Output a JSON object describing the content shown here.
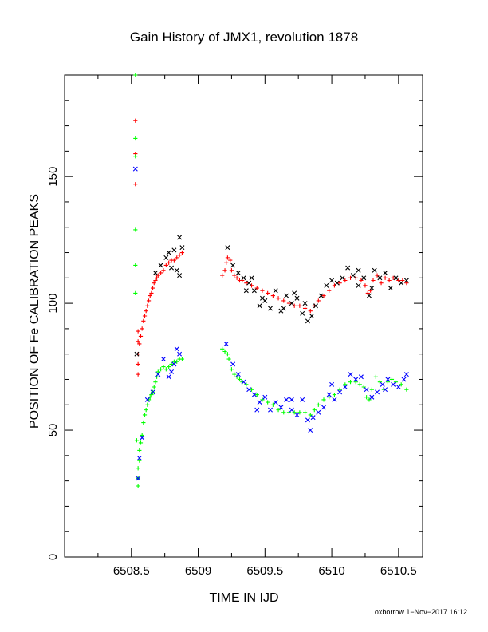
{
  "chart_data": {
    "type": "scatter",
    "title": "Gain History of JMX1, revolution 1878",
    "xlabel": "TIME IN IJD",
    "ylabel": "POSITION OF Fe CALIBRATION PEAKS",
    "xlim": [
      6508.0,
      6510.68
    ],
    "ylim": [
      0,
      190
    ],
    "x_ticks": [
      6508.5,
      6509,
      6509.5,
      6510,
      6510.5
    ],
    "x_tick_labels": [
      "6508.5",
      "6509",
      "6509.5",
      "6510",
      "6510.5"
    ],
    "y_ticks": [
      0,
      50,
      100,
      150
    ],
    "y_tick_labels": [
      "0",
      "50",
      "100",
      "150"
    ],
    "grid": false,
    "legend": "none",
    "footer": "oxborrow  1−Nov−2017 16:12",
    "series": [
      {
        "color": "#ff0000",
        "marker": "+",
        "points": [
          [
            6508.53,
            172
          ],
          [
            6508.53,
            159
          ],
          [
            6508.53,
            147
          ],
          [
            6508.55,
            89
          ],
          [
            6508.55,
            85
          ],
          [
            6508.55,
            80
          ],
          [
            6508.55,
            76
          ],
          [
            6508.55,
            72
          ],
          [
            6508.56,
            84
          ],
          [
            6508.57,
            87
          ],
          [
            6508.58,
            90
          ],
          [
            6508.59,
            93
          ],
          [
            6508.6,
            95
          ],
          [
            6508.61,
            97
          ],
          [
            6508.62,
            99
          ],
          [
            6508.63,
            101
          ],
          [
            6508.64,
            103
          ],
          [
            6508.65,
            104
          ],
          [
            6508.66,
            106
          ],
          [
            6508.67,
            108
          ],
          [
            6508.68,
            109
          ],
          [
            6508.69,
            110
          ],
          [
            6508.7,
            111
          ],
          [
            6508.72,
            112
          ],
          [
            6508.74,
            113
          ],
          [
            6508.76,
            115
          ],
          [
            6508.78,
            116
          ],
          [
            6508.8,
            117
          ],
          [
            6508.82,
            117
          ],
          [
            6508.84,
            118
          ],
          [
            6508.86,
            119
          ],
          [
            6508.88,
            120
          ],
          [
            6509.18,
            111
          ],
          [
            6509.2,
            113
          ],
          [
            6509.21,
            116
          ],
          [
            6509.22,
            118
          ],
          [
            6509.24,
            117
          ],
          [
            6509.25,
            113
          ],
          [
            6509.27,
            111
          ],
          [
            6509.29,
            110
          ],
          [
            6509.31,
            109
          ],
          [
            6509.33,
            109
          ],
          [
            6509.36,
            108
          ],
          [
            6509.4,
            107
          ],
          [
            6509.44,
            106
          ],
          [
            6509.48,
            105
          ],
          [
            6509.52,
            104
          ],
          [
            6509.56,
            103
          ],
          [
            6509.6,
            102
          ],
          [
            6509.64,
            101
          ],
          [
            6509.68,
            100
          ],
          [
            6509.72,
            99
          ],
          [
            6509.76,
            99
          ],
          [
            6509.8,
            98
          ],
          [
            6509.84,
            97
          ],
          [
            6509.87,
            99
          ],
          [
            6509.9,
            101
          ],
          [
            6509.94,
            103
          ],
          [
            6509.98,
            105
          ],
          [
            6510.02,
            107
          ],
          [
            6510.06,
            108
          ],
          [
            6510.1,
            109
          ],
          [
            6510.14,
            110
          ],
          [
            6510.18,
            110
          ],
          [
            6510.22,
            109
          ],
          [
            6510.25,
            107
          ],
          [
            6510.27,
            104
          ],
          [
            6510.29,
            105
          ],
          [
            6510.31,
            109
          ],
          [
            6510.34,
            111
          ],
          [
            6510.37,
            108
          ],
          [
            6510.4,
            110
          ],
          [
            6510.43,
            109
          ],
          [
            6510.46,
            110
          ],
          [
            6510.5,
            109
          ],
          [
            6510.53,
            109
          ],
          [
            6510.56,
            108
          ]
        ]
      },
      {
        "color": "#000000",
        "marker": "x",
        "points": [
          [
            6508.54,
            80
          ],
          [
            6508.68,
            112
          ],
          [
            6508.72,
            115
          ],
          [
            6508.76,
            118
          ],
          [
            6508.78,
            120
          ],
          [
            6508.8,
            114
          ],
          [
            6508.82,
            121
          ],
          [
            6508.84,
            113
          ],
          [
            6508.86,
            126
          ],
          [
            6508.88,
            122
          ],
          [
            6508.86,
            111
          ],
          [
            6509.22,
            122
          ],
          [
            6509.26,
            115
          ],
          [
            6509.3,
            112
          ],
          [
            6509.34,
            110
          ],
          [
            6509.38,
            108
          ],
          [
            6509.42,
            105
          ],
          [
            6509.46,
            99
          ],
          [
            6509.5,
            101
          ],
          [
            6509.54,
            98
          ],
          [
            6509.58,
            105
          ],
          [
            6509.62,
            97
          ],
          [
            6509.66,
            103
          ],
          [
            6509.7,
            100
          ],
          [
            6509.74,
            102
          ],
          [
            6509.78,
            96
          ],
          [
            6509.82,
            93
          ],
          [
            6509.85,
            95
          ],
          [
            6509.88,
            99
          ],
          [
            6509.92,
            103
          ],
          [
            6509.96,
            107
          ],
          [
            6510.0,
            109
          ],
          [
            6510.04,
            108
          ],
          [
            6510.08,
            110
          ],
          [
            6510.12,
            114
          ],
          [
            6510.16,
            111
          ],
          [
            6510.2,
            113
          ],
          [
            6510.24,
            110
          ],
          [
            6510.28,
            103
          ],
          [
            6510.32,
            113
          ],
          [
            6510.36,
            110
          ],
          [
            6510.4,
            112
          ],
          [
            6510.44,
            106
          ],
          [
            6510.48,
            110
          ],
          [
            6510.52,
            108
          ],
          [
            6510.56,
            109
          ],
          [
            6509.4,
            110
          ],
          [
            6509.36,
            105
          ],
          [
            6509.48,
            102
          ],
          [
            6509.64,
            98
          ],
          [
            6509.72,
            104
          ],
          [
            6509.8,
            100
          ],
          [
            6510.3,
            106
          ],
          [
            6510.2,
            107
          ]
        ]
      },
      {
        "color": "#00ff00",
        "marker": "+",
        "points": [
          [
            6508.53,
            190
          ],
          [
            6508.53,
            165
          ],
          [
            6508.53,
            158
          ],
          [
            6508.53,
            129
          ],
          [
            6508.53,
            115
          ],
          [
            6508.53,
            104
          ],
          [
            6508.54,
            46
          ],
          [
            6508.55,
            28
          ],
          [
            6508.55,
            31
          ],
          [
            6508.55,
            35
          ],
          [
            6508.56,
            38
          ],
          [
            6508.56,
            42
          ],
          [
            6508.57,
            45
          ],
          [
            6508.58,
            48
          ],
          [
            6508.59,
            53
          ],
          [
            6508.6,
            56
          ],
          [
            6508.61,
            58
          ],
          [
            6508.62,
            60
          ],
          [
            6508.63,
            62
          ],
          [
            6508.64,
            63
          ],
          [
            6508.65,
            64
          ],
          [
            6508.66,
            65
          ],
          [
            6508.67,
            67
          ],
          [
            6508.68,
            69
          ],
          [
            6508.69,
            71
          ],
          [
            6508.7,
            73
          ],
          [
            6508.72,
            74
          ],
          [
            6508.74,
            75
          ],
          [
            6508.76,
            74
          ],
          [
            6508.78,
            75
          ],
          [
            6508.8,
            76
          ],
          [
            6508.82,
            77
          ],
          [
            6508.84,
            77
          ],
          [
            6508.86,
            78
          ],
          [
            6508.88,
            78
          ],
          [
            6509.18,
            82
          ],
          [
            6509.2,
            81
          ],
          [
            6509.22,
            80
          ],
          [
            6509.23,
            78
          ],
          [
            6509.25,
            74
          ],
          [
            6509.27,
            72
          ],
          [
            6509.29,
            71
          ],
          [
            6509.31,
            70
          ],
          [
            6509.33,
            69
          ],
          [
            6509.36,
            68
          ],
          [
            6509.4,
            66
          ],
          [
            6509.44,
            64
          ],
          [
            6509.48,
            62
          ],
          [
            6509.52,
            61
          ],
          [
            6509.56,
            60
          ],
          [
            6509.6,
            58
          ],
          [
            6509.64,
            57
          ],
          [
            6509.68,
            57
          ],
          [
            6509.72,
            57
          ],
          [
            6509.76,
            57
          ],
          [
            6509.8,
            57
          ],
          [
            6509.84,
            56
          ],
          [
            6509.87,
            58
          ],
          [
            6509.9,
            60
          ],
          [
            6509.94,
            62
          ],
          [
            6509.98,
            63
          ],
          [
            6510.02,
            64
          ],
          [
            6510.06,
            66
          ],
          [
            6510.1,
            68
          ],
          [
            6510.14,
            69
          ],
          [
            6510.18,
            69
          ],
          [
            6510.21,
            68
          ],
          [
            6510.24,
            67
          ],
          [
            6510.26,
            63
          ],
          [
            6510.28,
            62
          ],
          [
            6510.3,
            66
          ],
          [
            6510.33,
            71
          ],
          [
            6510.36,
            69
          ],
          [
            6510.39,
            66
          ],
          [
            6510.42,
            69
          ],
          [
            6510.45,
            70
          ],
          [
            6510.48,
            69
          ],
          [
            6510.52,
            68
          ],
          [
            6510.56,
            66
          ]
        ]
      },
      {
        "color": "#0000ff",
        "marker": "x",
        "points": [
          [
            6508.53,
            153
          ],
          [
            6508.55,
            31
          ],
          [
            6508.56,
            39
          ],
          [
            6508.58,
            47
          ],
          [
            6508.62,
            62
          ],
          [
            6508.66,
            65
          ],
          [
            6508.7,
            72
          ],
          [
            6508.74,
            78
          ],
          [
            6508.78,
            71
          ],
          [
            6508.82,
            76
          ],
          [
            6508.84,
            82
          ],
          [
            6508.86,
            80
          ],
          [
            6508.8,
            73
          ],
          [
            6509.21,
            84
          ],
          [
            6509.26,
            76
          ],
          [
            6509.3,
            72
          ],
          [
            6509.34,
            69
          ],
          [
            6509.38,
            66
          ],
          [
            6509.42,
            64
          ],
          [
            6509.46,
            61
          ],
          [
            6509.5,
            63
          ],
          [
            6509.54,
            58
          ],
          [
            6509.58,
            61
          ],
          [
            6509.62,
            59
          ],
          [
            6509.66,
            62
          ],
          [
            6509.7,
            58
          ],
          [
            6509.74,
            56
          ],
          [
            6509.78,
            62
          ],
          [
            6509.82,
            54
          ],
          [
            6509.84,
            50
          ],
          [
            6509.86,
            55
          ],
          [
            6509.9,
            57
          ],
          [
            6509.94,
            59
          ],
          [
            6509.98,
            64
          ],
          [
            6510.02,
            62
          ],
          [
            6510.06,
            65
          ],
          [
            6510.1,
            67
          ],
          [
            6510.14,
            72
          ],
          [
            6510.18,
            70
          ],
          [
            6510.22,
            71
          ],
          [
            6510.26,
            66
          ],
          [
            6510.3,
            63
          ],
          [
            6510.34,
            65
          ],
          [
            6510.38,
            68
          ],
          [
            6510.42,
            70
          ],
          [
            6510.46,
            68
          ],
          [
            6510.5,
            67
          ],
          [
            6510.54,
            70
          ],
          [
            6510.56,
            72
          ],
          [
            6509.44,
            58
          ],
          [
            6509.7,
            62
          ],
          [
            6510.0,
            68
          ],
          [
            6510.4,
            66
          ]
        ]
      }
    ]
  }
}
